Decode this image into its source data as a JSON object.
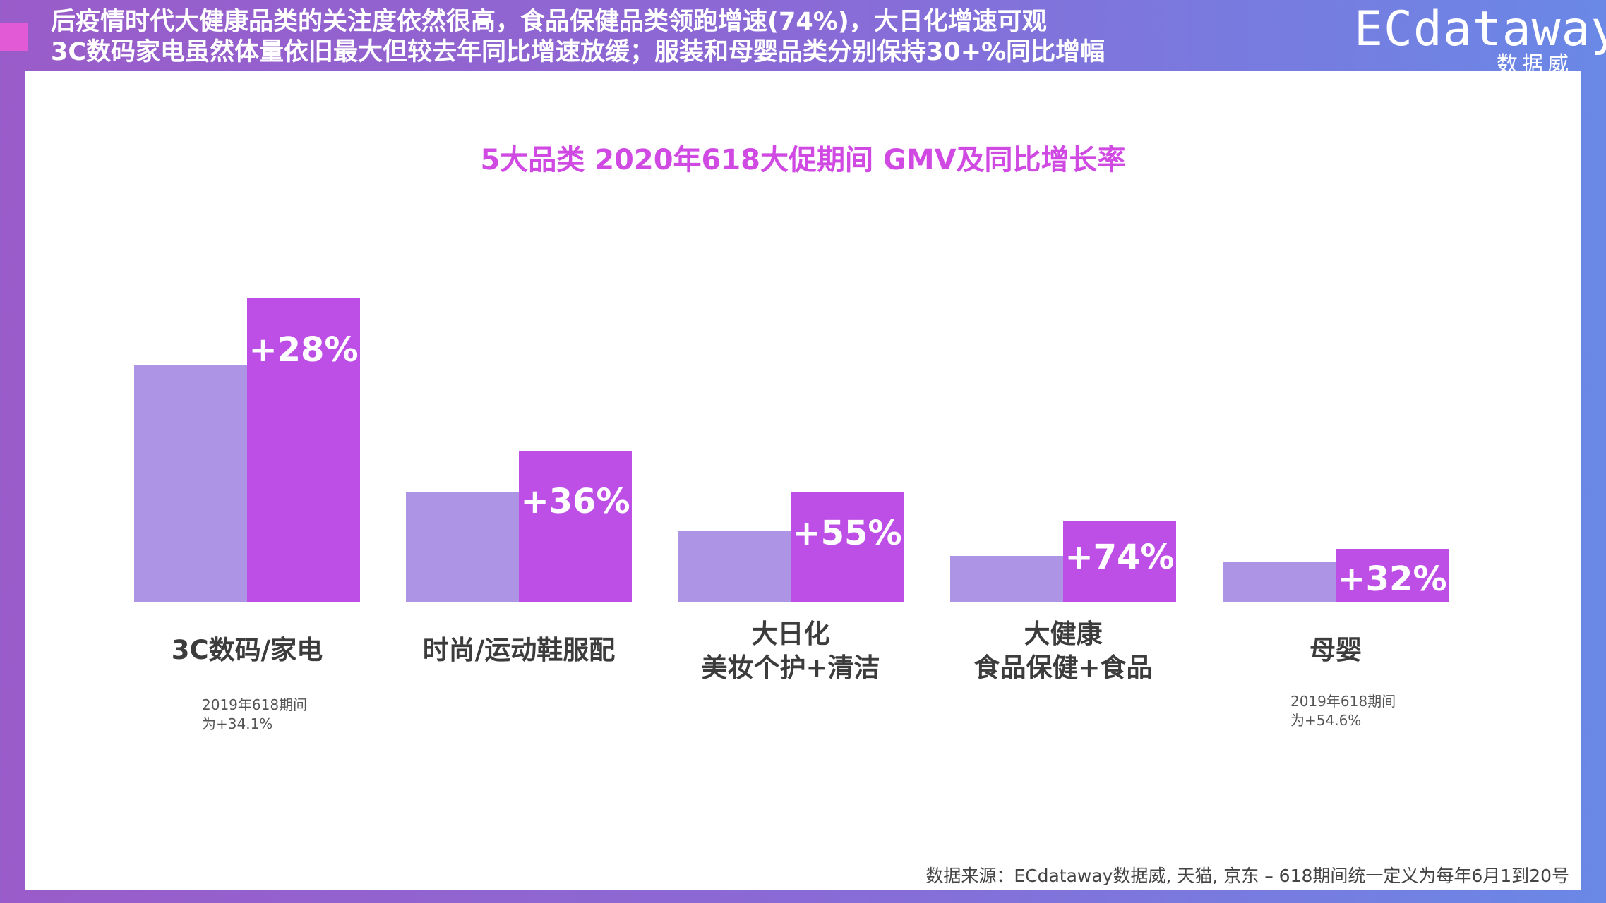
{
  "header": {
    "line1": "后疫情时代大健康品类的关注度依然很高，食品保健品类领跑增速(74%)，大日化增速可观",
    "line2": "3C数码家电虽然体量依旧最大但较去年同比增速放缓；服装和母婴品类分别保持30+%同比增幅"
  },
  "logo": {
    "main": "ECdataway",
    "sub": "数据威"
  },
  "colors": {
    "prev_bar": "#ae94e4",
    "cur_bar": "#be4fe6",
    "title": "#cf49e2",
    "accent": "#e25ad6"
  },
  "chart_data": {
    "type": "bar",
    "title": "5大品类 2020年618大促期间 GMV及同比增长率",
    "categories": [
      "3C数码/家电",
      "时尚/运动鞋服配",
      "大日化\n美妆个护+清洁",
      "大健康\n食品保健+食品",
      "母婴"
    ],
    "series": [
      {
        "name": "2019年618",
        "values": [
          237,
          110,
          71,
          46,
          40
        ]
      },
      {
        "name": "2020年618",
        "values": [
          303,
          150,
          110,
          80,
          53
        ]
      }
    ],
    "growth_labels": [
      "+28%",
      "+36%",
      "+55%",
      "+74%",
      "+32%"
    ],
    "ylim": [
      0,
      310
    ],
    "notes": [
      {
        "category_index": 0,
        "lines": [
          "2019年618期间",
          "为+34.1%"
        ]
      },
      {
        "category_index": 4,
        "lines": [
          "2019年618期间",
          "为+54.6%"
        ]
      }
    ]
  },
  "source": "数据来源：ECdataway数据威, 天猫, 京东 – 618期间统一定义为每年6月1到20号"
}
